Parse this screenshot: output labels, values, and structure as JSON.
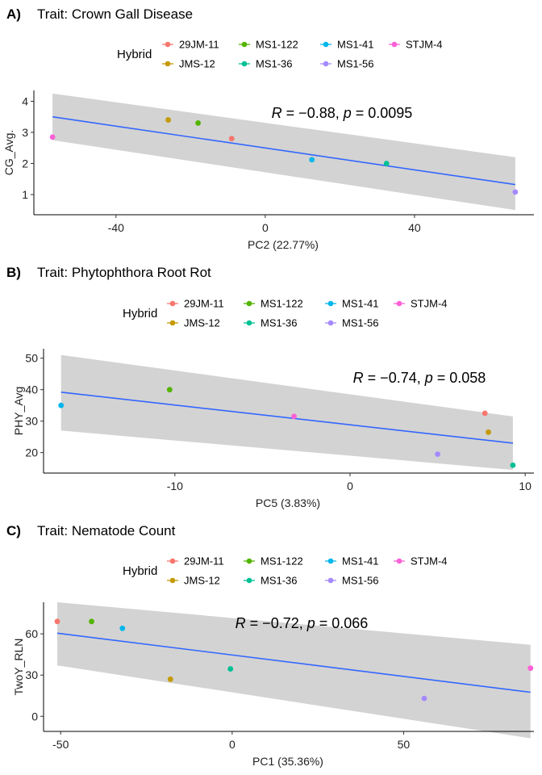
{
  "legend": {
    "title": "Hybrid",
    "items": [
      {
        "name": "29JM-11",
        "color": "#F8766D"
      },
      {
        "name": "JMS-12",
        "color": "#C49A00"
      },
      {
        "name": "MS1-122",
        "color": "#53B400"
      },
      {
        "name": "MS1-36",
        "color": "#00C094"
      },
      {
        "name": "MS1-41",
        "color": "#00B6EB"
      },
      {
        "name": "MS1-56",
        "color": "#A58AFF"
      },
      {
        "name": "STJM-4",
        "color": "#FB61D7"
      }
    ]
  },
  "chart_data": [
    {
      "type": "scatter",
      "tag": "A)",
      "title": "Trait: Crown Gall Disease",
      "xlabel": "PC2 (22.77%)",
      "ylabel": "CG_Avg.",
      "xlim": [
        -62,
        72
      ],
      "ylim": [
        0.35,
        4.35
      ],
      "xticks": [
        -40,
        0,
        40
      ],
      "yticks": [
        1,
        2,
        3,
        4
      ],
      "stat": {
        "R": "−0.88",
        "p": "0.0095"
      },
      "trend": {
        "x": [
          -57,
          67
        ],
        "y": [
          3.5,
          1.32
        ]
      },
      "band": {
        "upper": [
          4.25,
          2.2
        ],
        "lower": [
          2.75,
          0.5
        ]
      },
      "points": [
        {
          "hybrid": "STJM-4",
          "x": -57,
          "y": 2.85
        },
        {
          "hybrid": "JMS-12",
          "x": -26,
          "y": 3.4
        },
        {
          "hybrid": "MS1-122",
          "x": -18,
          "y": 3.3
        },
        {
          "hybrid": "29JM-11",
          "x": -9,
          "y": 2.8
        },
        {
          "hybrid": "MS1-41",
          "x": 12.5,
          "y": 2.12
        },
        {
          "hybrid": "MS1-36",
          "x": 32.5,
          "y": 2.0
        },
        {
          "hybrid": "MS1-56",
          "x": 67,
          "y": 1.08
        }
      ]
    },
    {
      "type": "scatter",
      "tag": "B)",
      "title": "Trait: Phytophthora Root Rot",
      "xlabel": "PC5 (3.83%)",
      "ylabel": "PHY_Avg",
      "xlim": [
        -17.5,
        10.5
      ],
      "ylim": [
        13.5,
        53
      ],
      "xticks": [
        -10,
        0,
        10
      ],
      "yticks": [
        20,
        30,
        40,
        50
      ],
      "stat": {
        "R": "−0.74",
        "p": "0.058"
      },
      "trend": {
        "x": [
          -16.5,
          9.3
        ],
        "y": [
          39.2,
          23.0
        ]
      },
      "band": {
        "upper": [
          51,
          31.5
        ],
        "lower": [
          27,
          14.5
        ]
      },
      "points": [
        {
          "hybrid": "MS1-41",
          "x": -16.5,
          "y": 35
        },
        {
          "hybrid": "MS1-122",
          "x": -10.3,
          "y": 40
        },
        {
          "hybrid": "STJM-4",
          "x": -3.2,
          "y": 31.5
        },
        {
          "hybrid": "MS1-56",
          "x": 5,
          "y": 19.5
        },
        {
          "hybrid": "29JM-11",
          "x": 7.7,
          "y": 32.5
        },
        {
          "hybrid": "JMS-12",
          "x": 7.9,
          "y": 26.5
        },
        {
          "hybrid": "MS1-36",
          "x": 9.3,
          "y": 16
        }
      ]
    },
    {
      "type": "scatter",
      "tag": "C)",
      "title": "Trait: Nematode Count",
      "xlabel": "PC1 (35.36%)",
      "ylabel": "TwoY_RLN",
      "xlim": [
        -55,
        88
      ],
      "ylim": [
        -11,
        83
      ],
      "xticks": [
        -50,
        0,
        50
      ],
      "yticks": [
        0,
        30,
        60
      ],
      "stat": {
        "R": "−0.72",
        "p": "0.066"
      },
      "trend": {
        "x": [
          -51,
          87
        ],
        "y": [
          60.5,
          17.5
        ]
      },
      "band": {
        "upper": [
          83,
          52
        ],
        "lower": [
          37,
          -16
        ]
      },
      "points": [
        {
          "hybrid": "29JM-11",
          "x": -51,
          "y": 69
        },
        {
          "hybrid": "MS1-122",
          "x": -41,
          "y": 69
        },
        {
          "hybrid": "MS1-41",
          "x": -32,
          "y": 64
        },
        {
          "hybrid": "JMS-12",
          "x": -18,
          "y": 27
        },
        {
          "hybrid": "MS1-36",
          "x": -0.5,
          "y": 34.5
        },
        {
          "hybrid": "MS1-56",
          "x": 56,
          "y": 13
        },
        {
          "hybrid": "STJM-4",
          "x": 87,
          "y": 35
        }
      ]
    }
  ]
}
